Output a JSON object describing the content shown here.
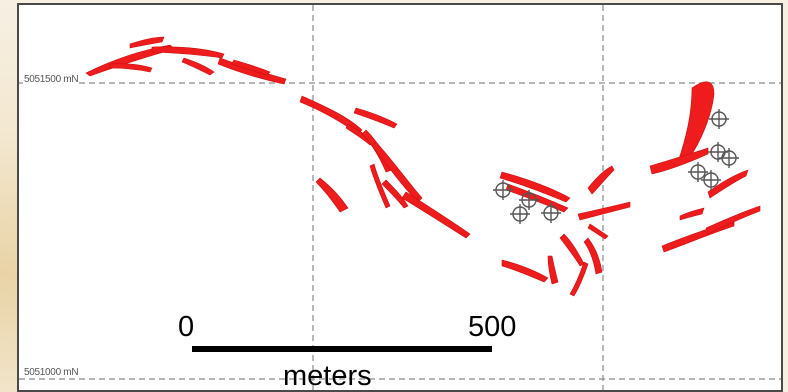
{
  "map": {
    "northing_labels": {
      "upper": "5051500 mN",
      "lower": "5051000 mN"
    },
    "scale_bar": {
      "start_label": "0",
      "end_label": "500",
      "unit_label": "meters"
    },
    "colors": {
      "veins": "#ee1c1c",
      "drill_holes": "#555555",
      "grid": "#8a8a8a",
      "scale_bar": "#000000"
    },
    "symbols": {
      "drill_hole": "crosshair-circle-icon"
    }
  }
}
